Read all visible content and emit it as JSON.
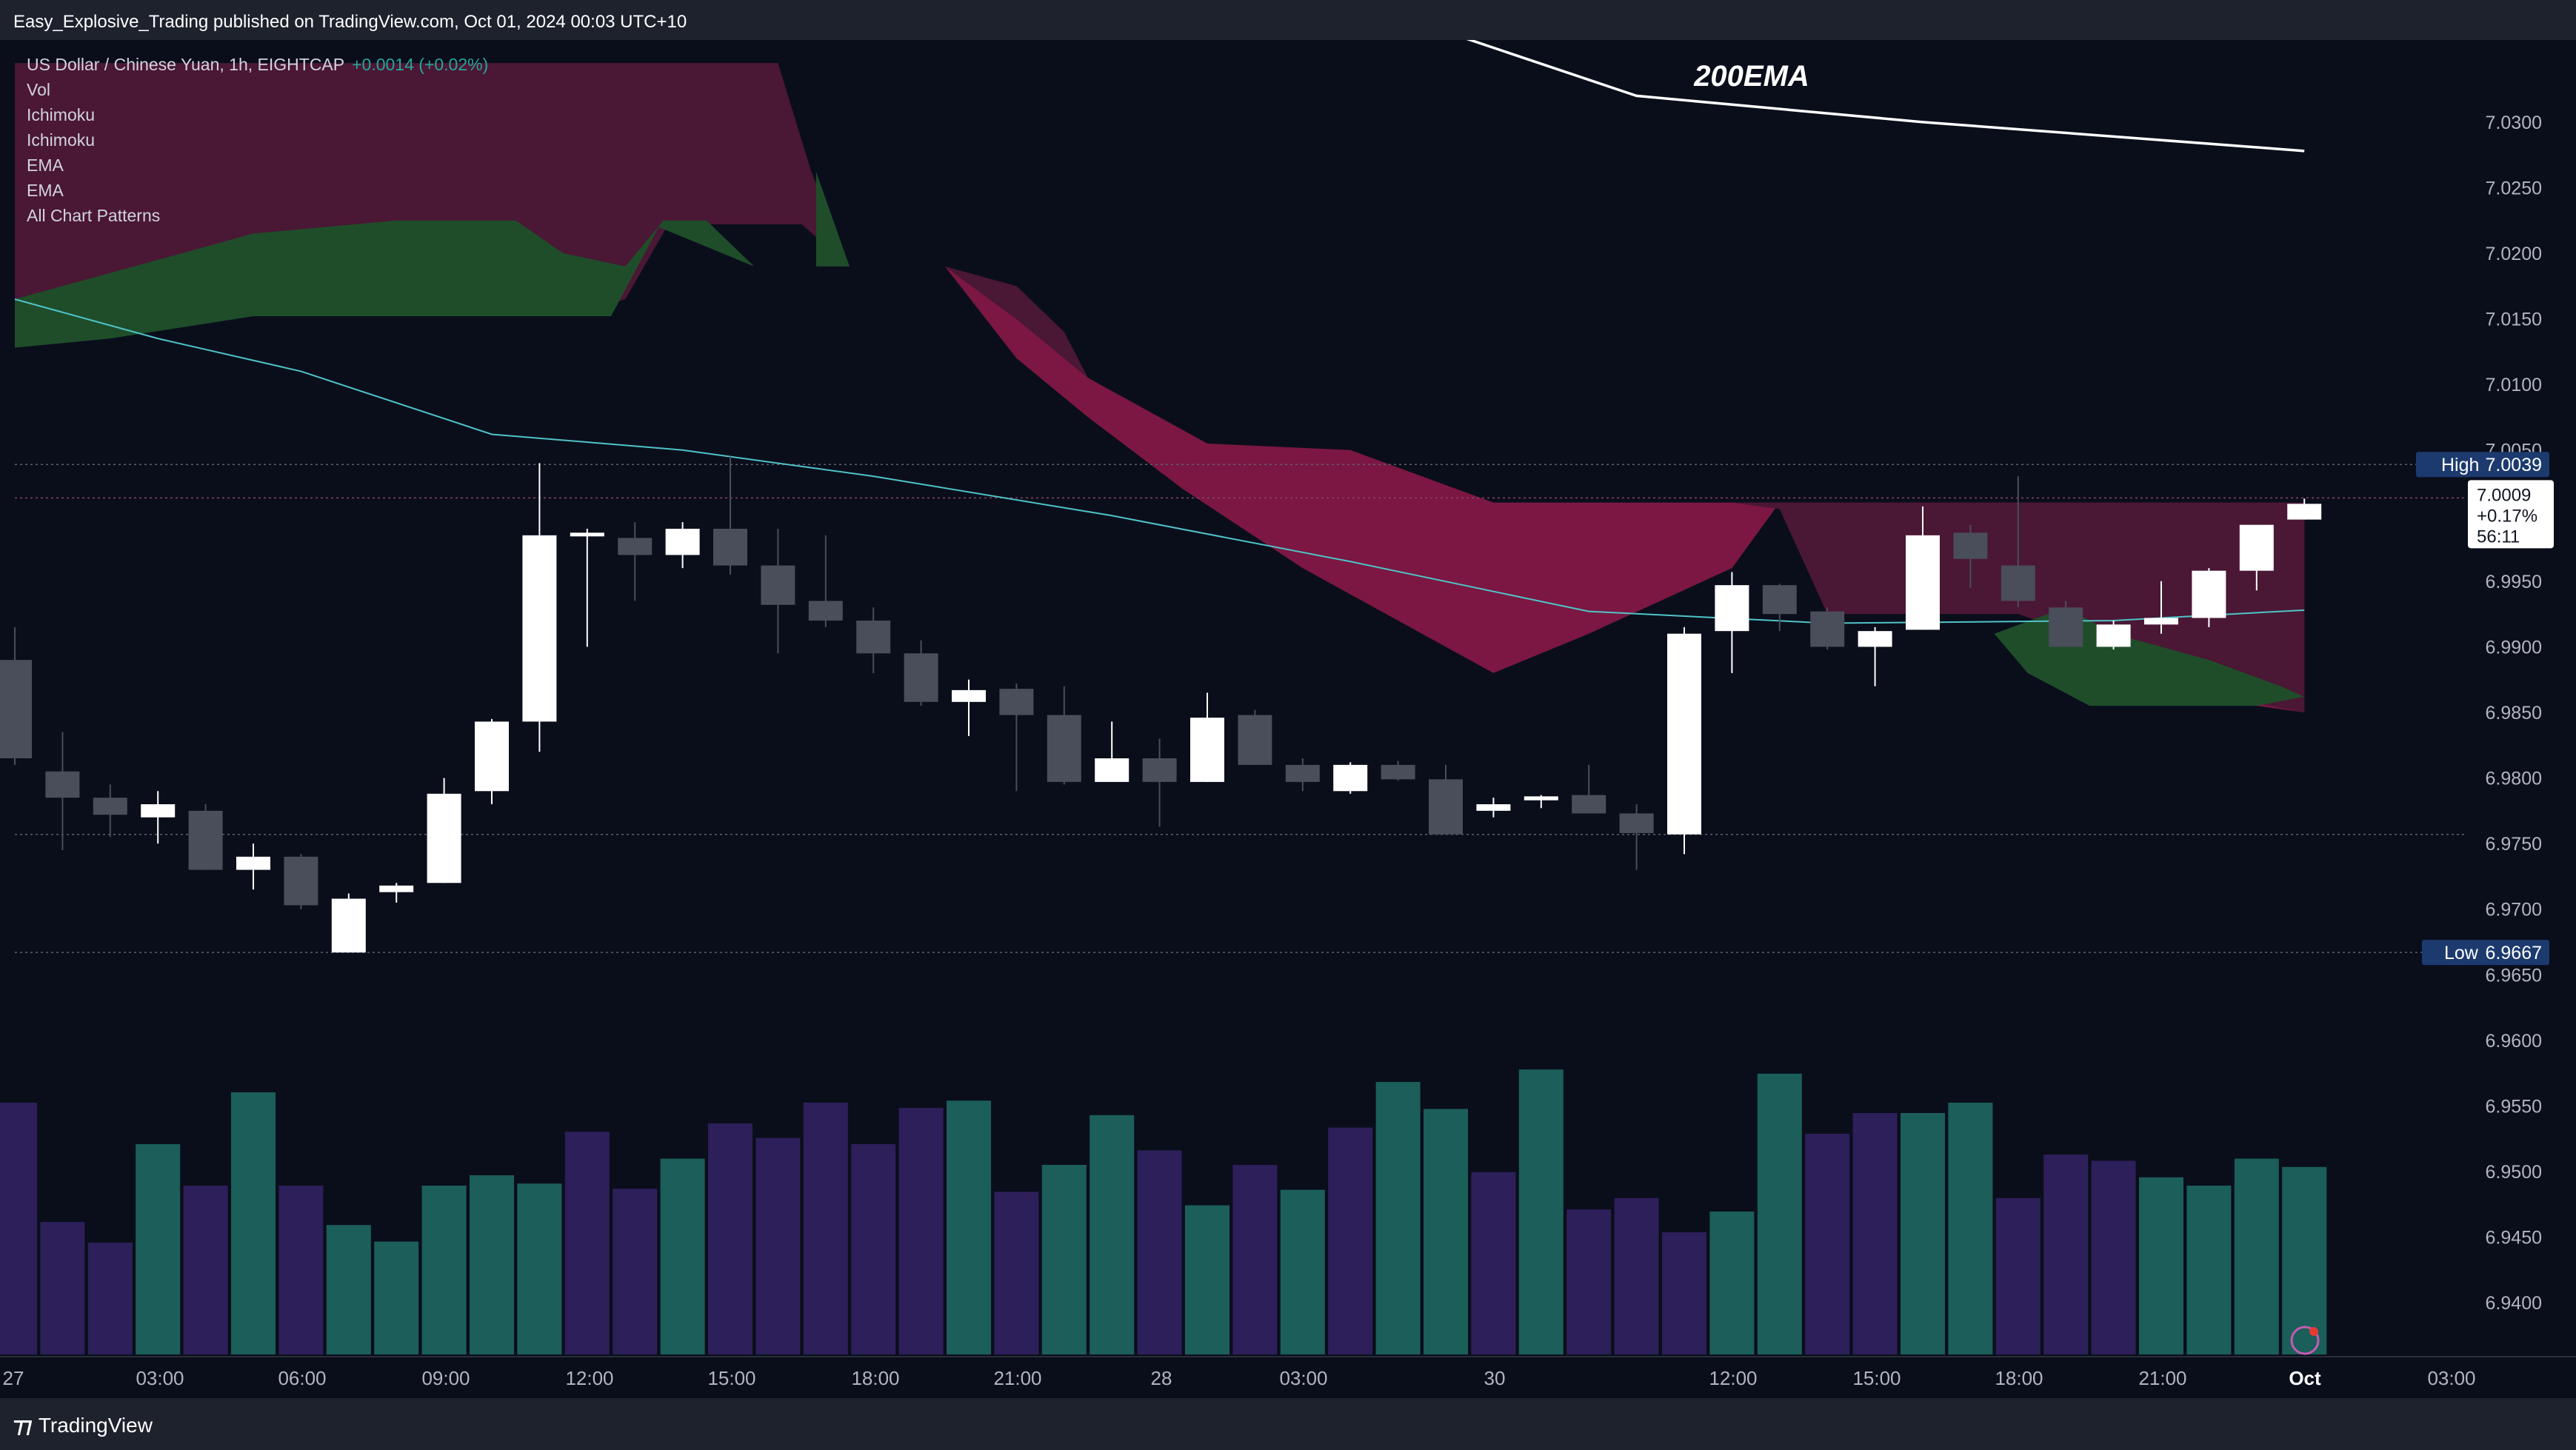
{
  "publish_line": "Easy_Explosive_Trading published on TradingView.com, Oct 01, 2024 00:03 UTC+10",
  "legend": {
    "symbol": "US Dollar / Chinese Yuan, 1h, EIGHTCAP",
    "change": "+0.0014 (+0.02%)",
    "indicators": [
      "Vol",
      "Ichimoku",
      "Ichimoku",
      "EMA",
      "EMA",
      "All Chart Patterns"
    ]
  },
  "overlay_label": "200EMA",
  "footer_brand": "TradingView",
  "colors": {
    "background": "#0a0e1b",
    "panel": "#1e222d",
    "candle_up": "#ffffff",
    "candle_down": "#4a4d5a",
    "cloud_bear": "#4a1734",
    "cloud_bear_bright": "#7b1742",
    "cloud_bull": "#1f4d2a",
    "ema_short": "#4fc3c8",
    "ema_200": "#ffffff",
    "vol_up": "#1b5e5a",
    "vol_down": "#2d1f5a",
    "axis_text": "#b2b5be",
    "high_low_badge": "#1c3a6e"
  },
  "chart_data": {
    "type": "candlestick",
    "title": "US Dollar / Chinese Yuan, 1h, EIGHTCAP",
    "ylim": [
      6.936,
      7.034
    ],
    "y_ticks": [
      "7.0300",
      "7.0250",
      "7.0200",
      "7.0150",
      "7.0100",
      "7.0050",
      "7.0000",
      "6.9950",
      "6.9900",
      "6.9850",
      "6.9800",
      "6.9750",
      "6.9700",
      "6.9650",
      "6.9600",
      "6.9550",
      "6.9500",
      "6.9450",
      "6.9400"
    ],
    "x_ticks": [
      "27",
      "03:00",
      "06:00",
      "09:00",
      "12:00",
      "15:00",
      "18:00",
      "21:00",
      "28",
      "03:00",
      "30",
      "12:00",
      "15:00",
      "18:00",
      "21:00",
      "Oct",
      "03:00"
    ],
    "high_label": "High",
    "high_value": "7.0039",
    "low_label": "Low",
    "low_value": "6.9667",
    "last_price": "7.0009",
    "last_change": "+0.17%",
    "countdown": "56:11",
    "candles": [
      {
        "o": 6.989,
        "h": 6.9915,
        "l": 6.981,
        "c": 6.9815
      },
      {
        "o": 6.9805,
        "h": 6.9835,
        "l": 6.9745,
        "c": 6.9785
      },
      {
        "o": 6.9785,
        "h": 6.9795,
        "l": 6.9755,
        "c": 6.9772
      },
      {
        "o": 6.977,
        "h": 6.979,
        "l": 6.975,
        "c": 6.978
      },
      {
        "o": 6.9775,
        "h": 6.978,
        "l": 6.973,
        "c": 6.973
      },
      {
        "o": 6.973,
        "h": 6.975,
        "l": 6.9715,
        "c": 6.974
      },
      {
        "o": 6.974,
        "h": 6.9742,
        "l": 6.97,
        "c": 6.9703
      },
      {
        "o": 6.9667,
        "h": 6.9712,
        "l": 6.9667,
        "c": 6.9708
      },
      {
        "o": 6.9713,
        "h": 6.972,
        "l": 6.9705,
        "c": 6.9718
      },
      {
        "o": 6.972,
        "h": 6.98,
        "l": 6.972,
        "c": 6.9788
      },
      {
        "o": 6.979,
        "h": 6.9845,
        "l": 6.978,
        "c": 6.9843
      },
      {
        "o": 6.9843,
        "h": 7.004,
        "l": 6.982,
        "c": 6.9985
      },
      {
        "o": 6.9985,
        "h": 6.999,
        "l": 6.99,
        "c": 6.9987
      },
      {
        "o": 6.9983,
        "h": 6.9995,
        "l": 6.9935,
        "c": 6.997
      },
      {
        "o": 6.997,
        "h": 6.9995,
        "l": 6.996,
        "c": 6.999
      },
      {
        "o": 6.999,
        "h": 7.0045,
        "l": 6.9955,
        "c": 6.9962
      },
      {
        "o": 6.9962,
        "h": 6.999,
        "l": 6.9895,
        "c": 6.9932
      },
      {
        "o": 6.9935,
        "h": 6.9985,
        "l": 6.9915,
        "c": 6.992
      },
      {
        "o": 6.992,
        "h": 6.993,
        "l": 6.988,
        "c": 6.9895
      },
      {
        "o": 6.9895,
        "h": 6.9905,
        "l": 6.9855,
        "c": 6.9858
      },
      {
        "o": 6.9858,
        "h": 6.9875,
        "l": 6.9832,
        "c": 6.9867
      },
      {
        "o": 6.9868,
        "h": 6.9872,
        "l": 6.979,
        "c": 6.9848
      },
      {
        "o": 6.9848,
        "h": 6.987,
        "l": 6.9795,
        "c": 6.9797
      },
      {
        "o": 6.9797,
        "h": 6.9843,
        "l": 6.9797,
        "c": 6.9815
      },
      {
        "o": 6.9815,
        "h": 6.983,
        "l": 6.9763,
        "c": 6.9797
      },
      {
        "o": 6.9797,
        "h": 6.9865,
        "l": 6.9797,
        "c": 6.9846
      },
      {
        "o": 6.9848,
        "h": 6.9852,
        "l": 6.981,
        "c": 6.981
      },
      {
        "o": 6.981,
        "h": 6.9815,
        "l": 6.979,
        "c": 6.9797
      },
      {
        "o": 6.979,
        "h": 6.9812,
        "l": 6.9788,
        "c": 6.981
      },
      {
        "o": 6.981,
        "h": 6.9813,
        "l": 6.9798,
        "c": 6.9799
      },
      {
        "o": 6.9799,
        "h": 6.981,
        "l": 6.9757,
        "c": 6.9757
      },
      {
        "o": 6.9775,
        "h": 6.9785,
        "l": 6.977,
        "c": 6.978
      },
      {
        "o": 6.9783,
        "h": 6.9787,
        "l": 6.9777,
        "c": 6.9786
      },
      {
        "o": 6.9787,
        "h": 6.981,
        "l": 6.9773,
        "c": 6.9773
      },
      {
        "o": 6.9773,
        "h": 6.978,
        "l": 6.973,
        "c": 6.9758
      },
      {
        "o": 6.9757,
        "h": 6.9915,
        "l": 6.9742,
        "c": 6.991
      },
      {
        "o": 6.9912,
        "h": 6.9957,
        "l": 6.988,
        "c": 6.9947
      },
      {
        "o": 6.9947,
        "h": 6.9948,
        "l": 6.9912,
        "c": 6.9925
      },
      {
        "o": 6.9927,
        "h": 6.993,
        "l": 6.9898,
        "c": 6.99
      },
      {
        "o": 6.99,
        "h": 6.9915,
        "l": 6.987,
        "c": 6.9912
      },
      {
        "o": 6.9913,
        "h": 7.0007,
        "l": 6.9913,
        "c": 6.9985
      },
      {
        "o": 6.9987,
        "h": 6.9993,
        "l": 6.9945,
        "c": 6.9967
      },
      {
        "o": 6.9962,
        "h": 7.003,
        "l": 6.993,
        "c": 6.9935
      },
      {
        "o": 6.993,
        "h": 6.9935,
        "l": 6.99,
        "c": 6.99
      },
      {
        "o": 6.99,
        "h": 6.992,
        "l": 6.9898,
        "c": 6.9917
      },
      {
        "o": 6.9917,
        "h": 6.995,
        "l": 6.991,
        "c": 6.9922
      },
      {
        "o": 6.9922,
        "h": 6.996,
        "l": 6.9915,
        "c": 6.9958
      },
      {
        "o": 6.9958,
        "h": 6.999,
        "l": 6.9943,
        "c": 6.9993
      },
      {
        "o": 6.9997,
        "h": 7.0013,
        "l": 6.9997,
        "c": 7.0009
      }
    ],
    "volume": [
      5.3,
      4.15,
      3.95,
      4.9,
      4.5,
      5.4,
      4.5,
      4.12,
      3.96,
      4.5,
      4.6,
      4.52,
      5.02,
      4.47,
      4.76,
      5.1,
      4.96,
      5.3,
      4.9,
      5.25,
      5.32,
      4.44,
      4.7,
      5.18,
      4.84,
      4.31,
      4.7,
      4.46,
      5.06,
      5.5,
      5.24,
      4.63,
      5.62,
      4.27,
      4.38,
      4.05,
      4.25,
      5.58,
      5.0,
      5.2,
      5.2,
      5.3,
      4.38,
      4.8,
      4.74,
      4.58,
      4.5,
      4.76,
      4.68
    ],
    "volume_up": [
      false,
      false,
      false,
      true,
      false,
      true,
      false,
      true,
      true,
      true,
      true,
      true,
      false,
      false,
      true,
      false,
      false,
      false,
      false,
      false,
      true,
      false,
      true,
      true,
      false,
      true,
      false,
      true,
      false,
      true,
      true,
      false,
      true,
      false,
      false,
      false,
      true,
      true,
      false,
      false,
      true,
      true,
      false,
      false,
      false,
      true,
      true,
      true,
      true
    ],
    "ema_200": [
      [
        29.5,
        7.0375
      ],
      [
        34,
        7.032
      ],
      [
        40,
        7.03
      ],
      [
        48,
        7.0278
      ]
    ],
    "ema_short": [
      [
        0,
        7.0165
      ],
      [
        3,
        7.0135
      ],
      [
        6,
        7.011
      ],
      [
        10,
        7.0062
      ],
      [
        14,
        7.005
      ],
      [
        18,
        7.003
      ],
      [
        23,
        7.0
      ],
      [
        28,
        6.9965
      ],
      [
        33,
        6.9927
      ],
      [
        38,
        6.9918
      ],
      [
        44,
        6.992
      ],
      [
        48,
        6.9928
      ]
    ]
  }
}
